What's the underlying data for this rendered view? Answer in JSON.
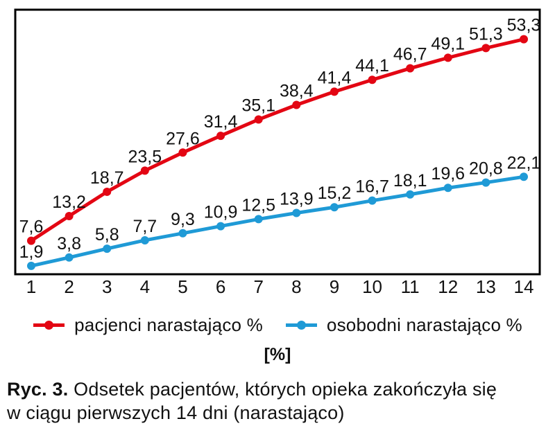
{
  "chart_data": {
    "type": "line",
    "title": "",
    "xlabel": "",
    "ylabel": "",
    "x": [
      1,
      2,
      3,
      4,
      5,
      6,
      7,
      8,
      9,
      10,
      11,
      12,
      13,
      14
    ],
    "ylim": [
      0,
      60
    ],
    "grid": false,
    "legend_position": "bottom",
    "decimal_separator": ",",
    "point_labels_visible": true,
    "series": [
      {
        "name": "pacjenci narastająco %",
        "color": "#e30613",
        "values": [
          7.6,
          13.2,
          18.7,
          23.5,
          27.6,
          31.4,
          35.1,
          38.4,
          41.4,
          44.1,
          46.7,
          49.1,
          51.3,
          53.3
        ],
        "labels": [
          "7,6",
          "13,2",
          "18,7",
          "23,5",
          "27,6",
          "31,4",
          "35,1",
          "38,4",
          "41,4",
          "44,1",
          "46,7",
          "49,1",
          "51,3",
          "53,3"
        ]
      },
      {
        "name": "osobodni narastająco %",
        "color": "#1f9ad6",
        "values": [
          1.9,
          3.8,
          5.8,
          7.7,
          9.3,
          10.9,
          12.5,
          13.9,
          15.2,
          16.7,
          18.1,
          19.6,
          20.8,
          22.1
        ],
        "labels": [
          "1,9",
          "3,8",
          "5,8",
          "7,7",
          "9,3",
          "10,9",
          "12,5",
          "13,9",
          "15,2",
          "16,7",
          "18,1",
          "19,6",
          "20,8",
          "22,1"
        ]
      }
    ]
  },
  "unit_label": "[%]",
  "caption": {
    "prefix": "Ryc. 3.",
    "line1": "Odsetek pacjentów, których opieka zakończyła się",
    "line2": "w ciągu pierwszych 14 dni (narastająco)"
  },
  "colors": {
    "axis_border": "#000000",
    "text": "#111111",
    "background": "#ffffff"
  }
}
